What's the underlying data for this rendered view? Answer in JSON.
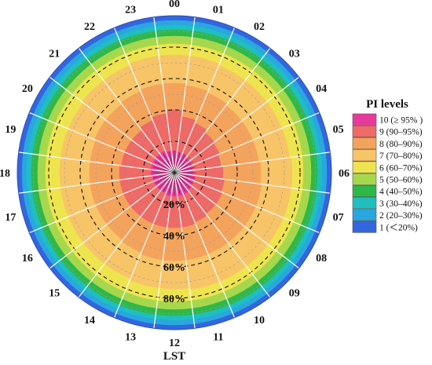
{
  "chart_data": {
    "type": "polar-heatmap",
    "title": "",
    "angular_axis": {
      "label": "LST",
      "ticks": [
        "00",
        "01",
        "02",
        "03",
        "04",
        "05",
        "06",
        "07",
        "08",
        "09",
        "10",
        "11",
        "12",
        "13",
        "14",
        "15",
        "16",
        "17",
        "18",
        "19",
        "20",
        "21",
        "22",
        "23"
      ]
    },
    "radial_axis": {
      "ticks": [
        "20%",
        "40%",
        "60%",
        "80%"
      ],
      "tick_values": [
        20,
        40,
        60,
        80
      ],
      "range": [
        0,
        100
      ]
    },
    "legend": {
      "title": "PI levels",
      "placement": "right",
      "entries": [
        {
          "label": "10 (≥ 95% )",
          "color": "#e8399b"
        },
        {
          "label": "9 (90–95%)",
          "color": "#ee6a67"
        },
        {
          "label": "8 (80–90%)",
          "color": "#f4a35c"
        },
        {
          "label": "7 (70–80%)",
          "color": "#f8c468"
        },
        {
          "label": "6 (60–70%)",
          "color": "#eee44f"
        },
        {
          "label": "5 (50–60%)",
          "color": "#a7d74d"
        },
        {
          "label": "4 (40–50%)",
          "color": "#2fb84a"
        },
        {
          "label": "3 (30–40%)",
          "color": "#1fbfbf"
        },
        {
          "label": "2 (20–30%)",
          "color": "#2aa6e0"
        },
        {
          "label": "1 (＜20%)",
          "color": "#3366dd"
        }
      ]
    },
    "level_outer_radius_percent": {
      "10": [
        14,
        13,
        13,
        12,
        12,
        12,
        12,
        13,
        13,
        14,
        15,
        15,
        15,
        15,
        14,
        14,
        14,
        14,
        15,
        15,
        15,
        15,
        15,
        14
      ],
      "9": [
        40,
        36,
        34,
        32,
        31,
        30,
        31,
        32,
        33,
        33,
        34,
        35,
        35,
        35,
        35,
        35,
        35,
        35,
        35,
        34,
        34,
        34,
        36,
        38
      ],
      "8": [
        57,
        56,
        55,
        54,
        54,
        54,
        55,
        56,
        56,
        56,
        56,
        56,
        56,
        56,
        55,
        54,
        54,
        54,
        54,
        54,
        55,
        55,
        56,
        57
      ],
      "7": [
        75,
        75,
        74,
        74,
        74,
        74,
        75,
        75,
        75,
        75,
        75,
        75,
        74,
        74,
        73,
        73,
        73,
        73,
        73,
        73,
        73,
        74,
        74,
        75
      ],
      "6": [
        82,
        82,
        82,
        82,
        82,
        82,
        82,
        82,
        82,
        82,
        82,
        82,
        82,
        82,
        82,
        82,
        82,
        82,
        82,
        82,
        82,
        82,
        82,
        82
      ],
      "5": [
        87,
        87,
        87,
        87,
        87,
        87,
        87,
        87,
        87,
        87,
        87,
        87,
        87,
        87,
        87,
        87,
        87,
        87,
        87,
        87,
        87,
        87,
        87,
        87
      ],
      "4": [
        91,
        91,
        91,
        91,
        91,
        91,
        91,
        91,
        91,
        91,
        91,
        91,
        91,
        91,
        91,
        91,
        91,
        91,
        91,
        91,
        91,
        91,
        91,
        91
      ],
      "3": [
        94,
        94,
        94,
        94,
        94,
        94,
        94,
        94,
        94,
        94,
        94,
        94,
        94,
        94,
        94,
        94,
        94,
        94,
        94,
        94,
        94,
        94,
        94,
        94
      ],
      "2": [
        97,
        97,
        97,
        97,
        97,
        97,
        97,
        97,
        97,
        97,
        97,
        97,
        97,
        97,
        97,
        97,
        97,
        97,
        97,
        97,
        97,
        97,
        97,
        97
      ],
      "1": [
        100,
        100,
        100,
        100,
        100,
        100,
        100,
        100,
        100,
        100,
        100,
        100,
        100,
        100,
        100,
        100,
        100,
        100,
        100,
        100,
        100,
        100,
        100,
        100
      ]
    },
    "grid": true
  }
}
